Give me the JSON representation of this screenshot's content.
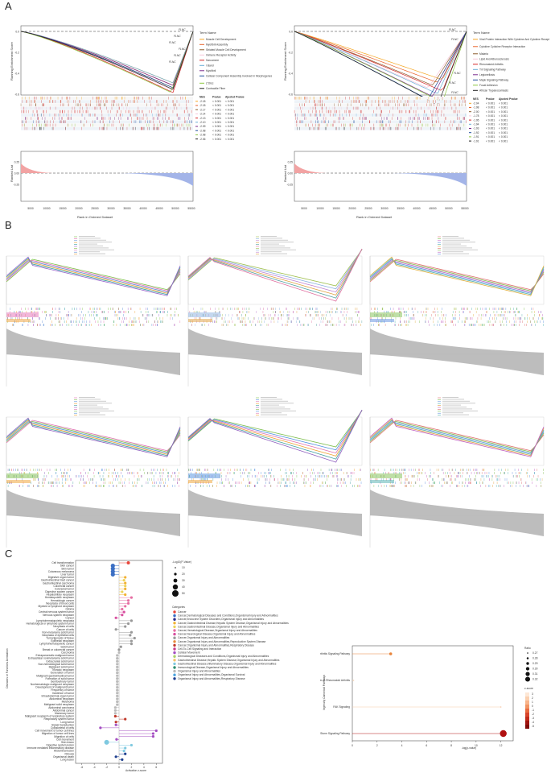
{
  "panels": {
    "a": "A",
    "b": "B",
    "c": "C"
  },
  "panelA_left": {
    "ylabel_top": "Running Enrichment Score",
    "ylabel_bottom": "Ranked List",
    "xlabel": "Rank in Ordered Dataset",
    "x_ticks": [
      "5000",
      "10000",
      "15000",
      "20000",
      "25000",
      "30000",
      "35000",
      "40000",
      "45000",
      "50000",
      "55000"
    ],
    "y_ticks": [
      "0.0",
      "-0.2",
      "-0.4",
      "-0.6"
    ],
    "ranked_ticks": [
      "0.25",
      "0.00",
      "-0.25"
    ],
    "gene_label": "FLNC",
    "legend_title": "Term Name",
    "terms": [
      "Muscle Cell Development",
      "Myofibril Assembly",
      "Striated Muscle Cell Development",
      "Immune Receptor Activity",
      "Sarcomere",
      "I Band",
      "Myofibril",
      "Cellular Component Assembly Involved In Morphogenesis",
      "Z Disc",
      "Contractile Fiber"
    ],
    "colors": [
      "#f5a623",
      "#e8632b",
      "#8b5a2b",
      "#f7c6d9",
      "#d62728",
      "#6baed6",
      "#7b2d8e",
      "#1f4e9c",
      "#8cc63f",
      "#222222"
    ],
    "stat_headers": [
      "NES",
      "Pvalue",
      "Ajusted Pvalue"
    ],
    "nes": [
      "-2.18",
      "-2.18",
      "-2.17",
      "-2.14",
      "-2.13",
      "-2.10",
      "-2.09",
      "-2.08",
      "-2.08",
      "-2.06"
    ],
    "pvalue": [
      "< 0.001",
      "< 0.001",
      "< 0.001",
      "< 0.001",
      "< 0.001",
      "< 0.001",
      "< 0.001",
      "< 0.001",
      "< 0.001",
      "< 0.001"
    ],
    "padj": [
      "< 0.001",
      "< 0.001",
      "< 0.001",
      "< 0.001",
      "< 0.001",
      "< 0.001",
      "< 0.001",
      "< 0.001",
      "< 0.001",
      "< 0.001"
    ]
  },
  "panelA_right": {
    "ylabel_top": "Running Enrichment Score",
    "ylabel_bottom": "Ranked List",
    "xlabel": "Rank in Ordered Dataset",
    "x_ticks": [
      "5000",
      "10000",
      "15000",
      "20000",
      "25000",
      "30000",
      "35000",
      "40000",
      "45000",
      "50000",
      "55000"
    ],
    "y_ticks": [
      "0.0",
      "-0.2",
      "-0.4",
      "-0.6"
    ],
    "ranked_ticks": [
      "0.25",
      "0.00",
      "-0.25"
    ],
    "gene_label": "FLNC",
    "legend_title": "Term Name",
    "terms": [
      "Viral Protein Interaction With Cytokine And Cytokine Receptor",
      "Cytokine Cytokine Receptor Interaction",
      "Malaria",
      "Lipid And Atherosclerosis",
      "Rheumatoid Arthritis",
      "Tnf Signaling Pathway",
      "Legionellosis",
      "Mapk Signaling Pathway",
      "Focal Adhesion",
      "African Trypanosomiasis"
    ],
    "colors": [
      "#f5a623",
      "#e8632b",
      "#8b5a2b",
      "#f7c6d9",
      "#d62728",
      "#6baed6",
      "#7b2d8e",
      "#1f4e9c",
      "#8cc63f",
      "#222222"
    ],
    "stat_headers": [
      "NES",
      "Pvalue",
      "Ajusted Pvalue"
    ],
    "nes": [
      "-2.04",
      "-1.98",
      "-2.00",
      "-1.78",
      "-1.95",
      "-1.94",
      "-1.93",
      "-1.92",
      "-1.91",
      "-1.91"
    ],
    "pvalue": [
      "< 0.001",
      "< 0.001",
      "< 0.001",
      "< 0.001",
      "< 0.001",
      "< 0.001",
      "< 0.001",
      "< 0.001",
      "< 0.001",
      "< 0.001"
    ],
    "padj": [
      "< 0.001",
      "< 0.001",
      "< 0.001",
      "< 0.001",
      "< 0.001",
      "< 0.001",
      "< 0.001",
      "< 0.001",
      "< 0.001",
      "< 0.001"
    ]
  },
  "panelC_left": {
    "ylabel": "Diseases or Functions Annotation",
    "xlabel": "Activation z-score",
    "x_ticks": [
      "-6",
      "-4",
      "-2",
      "0",
      "2",
      "4",
      "6"
    ],
    "size_legend_title": "-Log10(P-Value)",
    "size_legend": [
      "10",
      "20",
      "30",
      "40",
      "50"
    ],
    "categories_title": "Categories",
    "categories": [
      {
        "label": "Cancer",
        "color": "#e8463b"
      },
      {
        "label": "Cancer,Dermatological Diseases and Conditions,Organismal Injury and Abnormalities",
        "color": "#3b6fc4"
      },
      {
        "label": "Cancer,Endocrine System Disorders,Organismal Injury and Abnormalities",
        "color": "#2a2a8c"
      },
      {
        "label": "Cancer,Gastrointestinal Disease,Hepatic System Disease,Organismal Injury and Abnormalities",
        "color": "#f2b233"
      },
      {
        "label": "Cancer,Gastrointestinal Disease,Organismal Injury and Abnormalities",
        "color": "#ecd35a"
      },
      {
        "label": "Cancer,Hematological Disease,Organismal Injury and Abnormalities",
        "color": "#e66fa3"
      },
      {
        "label": "Cancer,Neurological Disease,Organismal Injury and Abnormalities",
        "color": "#d84fa0"
      },
      {
        "label": "Cancer,Organismal Injury and Abnormalities",
        "color": "#999999"
      },
      {
        "label": "Cancer,Organismal Injury and Abnormalities,Reproductive System Disease",
        "color": "#e88a3b"
      },
      {
        "label": "Cancer,Organismal Injury and Abnormalities,Respiratory Disease",
        "color": "#c0392b"
      },
      {
        "label": "Cell-To-Cell Signaling and Interaction",
        "color": "#c93c8c"
      },
      {
        "label": "Cellular Movement",
        "color": "#a44ec2"
      },
      {
        "label": "Dermatological Diseases and Conditions,Organismal Injury and Abnormalities",
        "color": "#a9d26a"
      },
      {
        "label": "Gastrointestinal Disease,Hepatic System Disease,Organismal Injury and Abnormalities",
        "color": "#f5c26b"
      },
      {
        "label": "Gastrointestinal Disease,Inflammatory Disease,Organismal Injury and Abnormalities",
        "color": "#7fc9e0"
      },
      {
        "label": "Immunological Disease,Organismal Injury and Abnormalities",
        "color": "#2e8f6e"
      },
      {
        "label": "Organismal Injury and Abnormalities",
        "color": "#bbbbbb"
      },
      {
        "label": "Organismal Injury and Abnormalities,Organismal Survival",
        "color": "#4aa3df"
      },
      {
        "label": "Organismal Injury and Abnormalities,Respiratory Disease",
        "color": "#1f3f8f"
      }
    ],
    "rows": [
      "Cell transformation",
      "Skin cancer",
      "Skin tumor",
      "Cutaneous melanoma",
      "Liver tumor",
      "Digestive organ tumor",
      "Gastrointestinal tract cancer",
      "Gastrointestinal carcinoma",
      "Colorectal cancer",
      "Colorectal tumor",
      "Digestive system cancer",
      "Hepatobiliary neoplasm",
      "Hematopoietic neoplasm",
      "Hematologic cancer",
      "Neoplasia of blood cells",
      "Myeloid or lymphoid neoplasm",
      "Glioma",
      "Central nervous system tumor",
      "Nervous system neoplasm",
      "Cancer",
      "Lymphohematopoietic neoplasia",
      "Hematological or lymphoid system tumor",
      "Neoplasia of cells",
      "Cancer of cells",
      "Non-melanoma solid tumor",
      "Neoplasia of epithelial cells",
      "Tumorigenesis of tissue",
      "Epithelial neoplasm",
      "Lymphohematopoietic cancer",
      "Solid tumor",
      "Breast or colorectal cancer",
      "Carcinoma",
      "Extrapancreatic malignant tumor",
      "Extracellular nonmelanoma solid tumor",
      "Extracranial solid tumor",
      "Non-hematological solid tumor",
      "Malignant solid tumor",
      "Thoracic neoplasm",
      "Generation of tumor",
      "Malignant gastrointestinal tumor",
      "Formation of solid tumor",
      "Genitourinary tumor",
      "Nonhematologic malignant neoplasm",
      "Development of malignant tumor",
      "Frequency of tumor",
      "Incidence of tumor",
      "Intraabdominal organ tumor",
      "Abdominal neoplasm",
      "Melanoma",
      "Malignant solid neoplasm",
      "Abdominal carcinoma",
      "Abdominal cancer",
      "Mammary tumor",
      "Malignant neoplasm of respiratory system",
      "Respiratory system tumor",
      "Lung tumor",
      "Signal transduction",
      "Cytoskeletal of cells",
      "Cell movement of tumor cell lines",
      "Migration of tumor cell lines",
      "Migration of cells",
      "Cell movement",
      "Skin lesion",
      "Digestive system lesion",
      "Immune mediated inflammatory disease",
      "Abdominal lesion",
      "Fibrosis",
      "Organismal death",
      "Lung lesion"
    ],
    "values": [
      1.5,
      -1,
      -1,
      -1,
      -1,
      1,
      0.8,
      1,
      1,
      1,
      0.5,
      1,
      2,
      1.5,
      1.5,
      1,
      0.5,
      0.8,
      0.5,
      -0.5,
      2,
      1.5,
      1,
      -0.5,
      2,
      1.8,
      2.5,
      2,
      2,
      0.3,
      0,
      0,
      -0.3,
      -0.3,
      -0.3,
      -0.3,
      -0.3,
      -0.3,
      -0.3,
      -0.3,
      -0.3,
      -0.3,
      -0.3,
      -0.3,
      -0.3,
      -0.3,
      -0.3,
      -0.3,
      -0.3,
      -0.3,
      -0.6,
      -0.6,
      -0.6,
      -0.6,
      1,
      -0.5,
      -0.5,
      -3,
      6,
      5.5,
      5.5,
      -0.4,
      -2,
      2,
      1,
      0.8,
      1,
      -0.5,
      0.5
    ]
  },
  "panelC_right": {
    "ylabel": "Ingenuity Canonical Pathways",
    "xlabel": "-log(p-value)",
    "x_ticks": [
      "0",
      "2",
      "4",
      "6",
      "8",
      "10",
      "12"
    ],
    "ratio_title": "Ratio",
    "ratio_legend": [
      "0.27",
      "0.28",
      "0.29",
      "0.30",
      "0.31",
      "0.32"
    ],
    "z_title": "z-score",
    "z_legend": [
      "3",
      "2",
      "1",
      "0",
      "-1",
      "-2",
      "-3",
      "-4",
      "-5"
    ],
    "pathways": [
      "Role Of Chondrocytes In Rheumatoid Arthritis Signaling Pathway",
      "Role of Osteoblasts, Osteoclasts and Chondrocytes in Rheumatoid Arthritis",
      "FAK Signaling",
      "Pathogen Induced Cytokine Storm Signaling Pathway"
    ],
    "neg_log_p": [
      3.1,
      0.1,
      12,
      12.2
    ]
  }
}
